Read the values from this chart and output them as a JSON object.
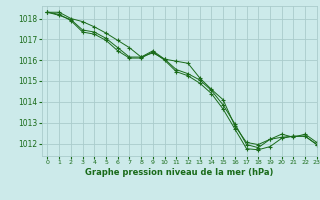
{
  "title": "Graphe pression niveau de la mer (hPa)",
  "bg_color": "#cceaea",
  "grid_color": "#aacccc",
  "line_color": "#1a6b1a",
  "xlim": [
    -0.5,
    23
  ],
  "ylim": [
    1011.4,
    1018.6
  ],
  "yticks": [
    1012,
    1013,
    1014,
    1015,
    1016,
    1017,
    1018
  ],
  "xticks": [
    0,
    1,
    2,
    3,
    4,
    5,
    6,
    7,
    8,
    9,
    10,
    11,
    12,
    13,
    14,
    15,
    16,
    17,
    18,
    19,
    20,
    21,
    22,
    23
  ],
  "series": [
    [
      1018.3,
      1018.3,
      1018.0,
      1017.85,
      1017.6,
      1017.3,
      1016.95,
      1016.6,
      1016.15,
      1016.35,
      1016.05,
      1015.95,
      1015.85,
      1015.15,
      1014.6,
      1014.1,
      1012.85,
      1012.05,
      1011.95,
      1012.2,
      1012.45,
      1012.3,
      1012.45,
      1012.05
    ],
    [
      1018.3,
      1018.15,
      1017.95,
      1017.45,
      1017.35,
      1017.05,
      1016.6,
      1016.15,
      1016.15,
      1016.45,
      1016.05,
      1015.55,
      1015.35,
      1015.05,
      1014.55,
      1013.85,
      1012.95,
      1011.95,
      1011.8,
      1012.2,
      1012.3,
      1012.35,
      1012.35,
      1011.95
    ],
    [
      1018.3,
      1018.2,
      1017.9,
      1017.35,
      1017.25,
      1016.95,
      1016.45,
      1016.1,
      1016.1,
      1016.4,
      1016.0,
      1015.45,
      1015.25,
      1014.9,
      1014.4,
      1013.65,
      1012.7,
      1011.75,
      1011.7,
      1011.85,
      1012.25,
      1012.35,
      1012.35,
      1011.95
    ]
  ]
}
